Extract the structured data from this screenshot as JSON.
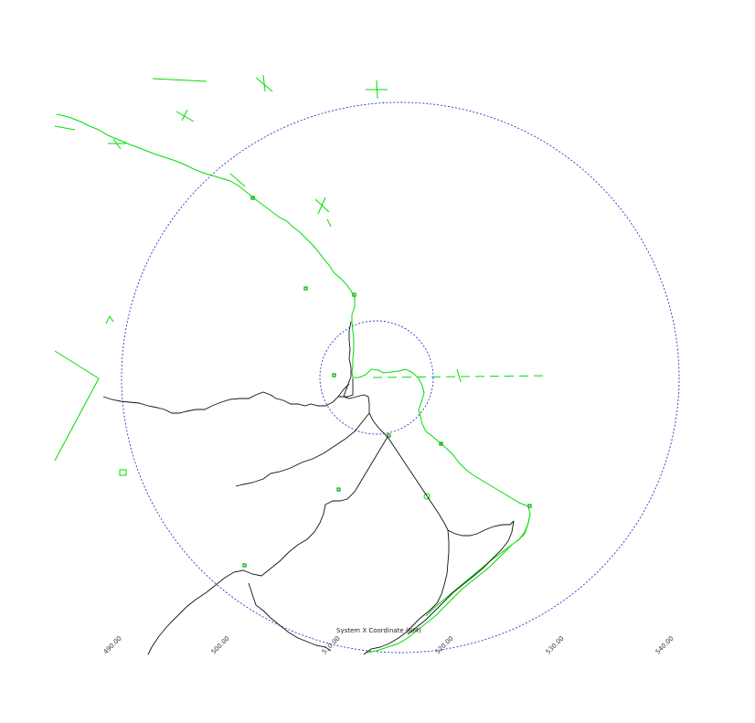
{
  "chart": {
    "x_axis_title": "System X Coordinate (NM)",
    "x_tick_labels": [
      "490.00",
      "500.00",
      "510.00",
      "520.00",
      "530.00",
      "540.00"
    ]
  },
  "colors": {
    "coastline": "#00dd00",
    "roads": "#111111",
    "range_rings": "#3333cc",
    "background": "#ffffff"
  },
  "legend": {
    "items": []
  }
}
